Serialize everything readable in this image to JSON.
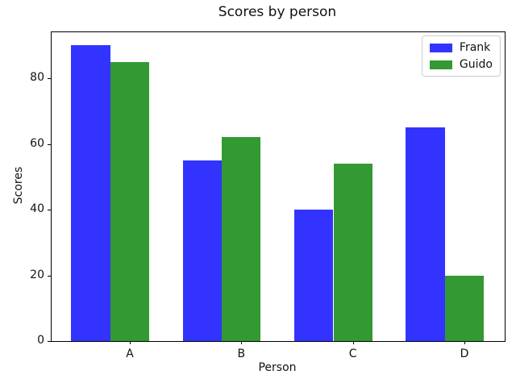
{
  "chart_data": {
    "type": "bar",
    "title": "Scores by person",
    "xlabel": "Person",
    "ylabel": "Scores",
    "categories": [
      "A",
      "B",
      "C",
      "D"
    ],
    "series": [
      {
        "name": "Frank",
        "color": "#3333ff",
        "values": [
          90,
          55,
          40,
          65
        ]
      },
      {
        "name": "Guido",
        "color": "#339933",
        "values": [
          85,
          62,
          54,
          20
        ]
      }
    ],
    "yticks": [
      0,
      20,
      40,
      60,
      80
    ],
    "ylim": [
      0,
      94
    ],
    "legend_position": "upper right",
    "grid": false,
    "background_color": "#ffffff",
    "axis_color": "#000000"
  }
}
